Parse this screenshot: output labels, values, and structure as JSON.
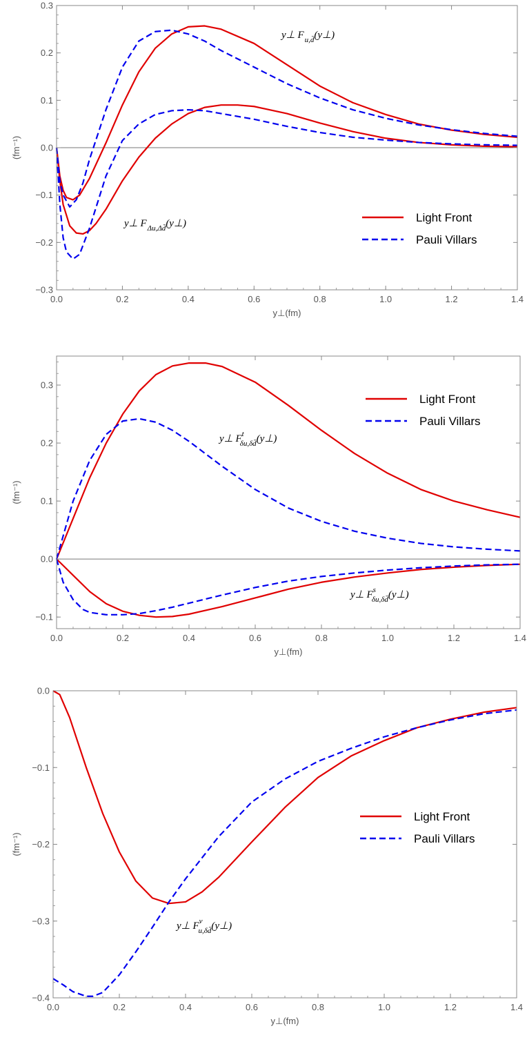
{
  "colors": {
    "light_front": "#e00000",
    "pauli_villars": "#0000ee",
    "frame": "#888888",
    "zero_line": "#777777"
  },
  "chart_data": [
    {
      "type": "line",
      "xlabel": "y⊥(fm)",
      "ylabel": "(fm⁻¹)",
      "xlim": [
        0,
        1.4
      ],
      "ylim": [
        -0.3,
        0.3
      ],
      "xticks": [
        "0.0",
        "0.2",
        "0.4",
        "0.6",
        "0.8",
        "1.0",
        "1.2",
        "1.4"
      ],
      "yticks": [
        "−0.3",
        "−0.2",
        "−0.1",
        "0.0",
        "0.1",
        "0.2",
        "0.3"
      ],
      "legend": {
        "position": "bottom-right",
        "entries": [
          "Light Front",
          "Pauli Villars"
        ]
      },
      "annotations": [
        {
          "text": "y⊥ F",
          "sub": "u,d̄",
          "tail": "(y⊥)"
        },
        {
          "text": "y⊥ F",
          "sub": "Δu,Δd̄",
          "tail": "(y⊥)"
        }
      ],
      "series": [
        {
          "name": "Light Front",
          "style": "solid",
          "x": [
            0,
            0.01,
            0.02,
            0.03,
            0.05,
            0.07,
            0.1,
            0.15,
            0.2,
            0.25,
            0.3,
            0.35,
            0.4,
            0.45,
            0.5,
            0.6,
            0.7,
            0.8,
            0.9,
            1.0,
            1.1,
            1.2,
            1.3,
            1.4
          ],
          "y": [
            0,
            -0.06,
            -0.09,
            -0.105,
            -0.11,
            -0.1,
            -0.065,
            0.01,
            0.09,
            0.16,
            0.21,
            0.24,
            0.255,
            0.257,
            0.25,
            0.22,
            0.175,
            0.13,
            0.095,
            0.07,
            0.05,
            0.037,
            0.028,
            0.022
          ]
        },
        {
          "name": "Light Front",
          "style": "solid",
          "x": [
            0,
            0.01,
            0.02,
            0.04,
            0.06,
            0.08,
            0.1,
            0.12,
            0.15,
            0.2,
            0.25,
            0.3,
            0.35,
            0.4,
            0.45,
            0.5,
            0.55,
            0.6,
            0.7,
            0.8,
            0.9,
            1.0,
            1.1,
            1.2,
            1.3,
            1.4
          ],
          "y": [
            0,
            -0.07,
            -0.12,
            -0.165,
            -0.18,
            -0.182,
            -0.175,
            -0.16,
            -0.13,
            -0.07,
            -0.02,
            0.02,
            0.05,
            0.072,
            0.085,
            0.09,
            0.09,
            0.087,
            0.072,
            0.052,
            0.034,
            0.02,
            0.011,
            0.006,
            0.003,
            0.002
          ]
        },
        {
          "name": "Pauli Villars",
          "style": "dashed",
          "x": [
            0,
            0.01,
            0.02,
            0.04,
            0.06,
            0.08,
            0.1,
            0.15,
            0.2,
            0.25,
            0.3,
            0.35,
            0.4,
            0.45,
            0.5,
            0.6,
            0.7,
            0.8,
            0.9,
            1.0,
            1.1,
            1.2,
            1.3,
            1.4
          ],
          "y": [
            0,
            -0.07,
            -0.1,
            -0.125,
            -0.11,
            -0.075,
            -0.025,
            0.08,
            0.17,
            0.225,
            0.245,
            0.248,
            0.24,
            0.225,
            0.205,
            0.17,
            0.135,
            0.105,
            0.08,
            0.062,
            0.048,
            0.038,
            0.03,
            0.024
          ]
        },
        {
          "name": "Pauli Villars",
          "style": "dashed",
          "x": [
            0,
            0.01,
            0.02,
            0.03,
            0.05,
            0.07,
            0.1,
            0.15,
            0.2,
            0.25,
            0.3,
            0.35,
            0.4,
            0.45,
            0.5,
            0.6,
            0.7,
            0.8,
            0.9,
            1.0,
            1.1,
            1.2,
            1.3,
            1.4
          ],
          "y": [
            0,
            -0.12,
            -0.19,
            -0.22,
            -0.235,
            -0.225,
            -0.17,
            -0.06,
            0.015,
            0.05,
            0.07,
            0.078,
            0.08,
            0.078,
            0.072,
            0.06,
            0.045,
            0.032,
            0.022,
            0.016,
            0.011,
            0.008,
            0.006,
            0.005
          ]
        }
      ]
    },
    {
      "type": "line",
      "xlabel": "y⊥(fm)",
      "ylabel": "(fm⁻¹)",
      "xlim": [
        0,
        1.4
      ],
      "ylim": [
        -0.12,
        0.35
      ],
      "xticks": [
        "0.0",
        "0.2",
        "0.4",
        "0.6",
        "0.8",
        "1.0",
        "1.2",
        "1.4"
      ],
      "yticks": [
        "−0.1",
        "0.0",
        "0.1",
        "0.2",
        "0.3"
      ],
      "legend": {
        "position": "top-right",
        "entries": [
          "Light Front",
          "Pauli Villars"
        ]
      },
      "annotations": [
        {
          "text": "y⊥ F",
          "sup": "t",
          "sub": "δu,δd̄",
          "tail": "(y⊥)"
        },
        {
          "text": "y⊥ F",
          "sup": "s",
          "sub": "δu,δd̄",
          "tail": "(y⊥)"
        }
      ],
      "series": [
        {
          "name": "Light Front",
          "style": "solid",
          "x": [
            0,
            0.05,
            0.1,
            0.15,
            0.2,
            0.25,
            0.3,
            0.35,
            0.4,
            0.45,
            0.5,
            0.6,
            0.7,
            0.8,
            0.9,
            1.0,
            1.1,
            1.2,
            1.3,
            1.4
          ],
          "y": [
            0,
            0.07,
            0.14,
            0.2,
            0.25,
            0.29,
            0.318,
            0.333,
            0.338,
            0.338,
            0.332,
            0.305,
            0.265,
            0.222,
            0.182,
            0.148,
            0.12,
            0.1,
            0.085,
            0.072
          ]
        },
        {
          "name": "Light Front",
          "style": "solid",
          "x": [
            0,
            0.05,
            0.1,
            0.15,
            0.2,
            0.25,
            0.3,
            0.35,
            0.4,
            0.5,
            0.6,
            0.7,
            0.8,
            0.9,
            1.0,
            1.1,
            1.2,
            1.3,
            1.4
          ],
          "y": [
            0,
            -0.028,
            -0.056,
            -0.077,
            -0.09,
            -0.097,
            -0.1,
            -0.099,
            -0.095,
            -0.082,
            -0.067,
            -0.052,
            -0.04,
            -0.031,
            -0.024,
            -0.018,
            -0.014,
            -0.011,
            -0.009
          ]
        },
        {
          "name": "Pauli Villars",
          "style": "dashed",
          "x": [
            0,
            0.05,
            0.1,
            0.15,
            0.2,
            0.25,
            0.3,
            0.35,
            0.4,
            0.5,
            0.6,
            0.7,
            0.8,
            0.9,
            1.0,
            1.1,
            1.2,
            1.3,
            1.4
          ],
          "y": [
            0,
            0.1,
            0.17,
            0.215,
            0.238,
            0.242,
            0.236,
            0.222,
            0.203,
            0.16,
            0.12,
            0.088,
            0.065,
            0.048,
            0.036,
            0.027,
            0.021,
            0.017,
            0.014
          ]
        },
        {
          "name": "Pauli Villars",
          "style": "dashed",
          "x": [
            0,
            0.02,
            0.05,
            0.08,
            0.1,
            0.15,
            0.2,
            0.25,
            0.3,
            0.35,
            0.4,
            0.5,
            0.6,
            0.7,
            0.8,
            0.9,
            1.0,
            1.1,
            1.2,
            1.3,
            1.4
          ],
          "y": [
            0,
            -0.04,
            -0.07,
            -0.087,
            -0.092,
            -0.096,
            -0.096,
            -0.094,
            -0.089,
            -0.083,
            -0.076,
            -0.062,
            -0.049,
            -0.038,
            -0.03,
            -0.024,
            -0.019,
            -0.015,
            -0.012,
            -0.01,
            -0.009
          ]
        }
      ]
    },
    {
      "type": "line",
      "xlabel": "y⊥(fm)",
      "ylabel": "(fm⁻¹)",
      "xlim": [
        0,
        1.4
      ],
      "ylim": [
        -0.4,
        0.0
      ],
      "xticks": [
        "0.0",
        "0.2",
        "0.4",
        "0.6",
        "0.8",
        "1.0",
        "1.2",
        "1.4"
      ],
      "yticks": [
        "−0.4",
        "−0.3",
        "−0.2",
        "−0.1",
        "0.0"
      ],
      "legend": {
        "position": "bottom-right",
        "entries": [
          "Light Front",
          "Pauli Villars"
        ]
      },
      "annotations": [
        {
          "text": "y⊥ F",
          "sup": "v",
          "sub": "u,δd̄",
          "tail": "(y⊥)"
        }
      ],
      "series": [
        {
          "name": "Light Front",
          "style": "solid",
          "x": [
            0,
            0.02,
            0.05,
            0.1,
            0.15,
            0.2,
            0.25,
            0.3,
            0.35,
            0.4,
            0.45,
            0.5,
            0.6,
            0.7,
            0.8,
            0.9,
            1.0,
            1.1,
            1.2,
            1.3,
            1.4
          ],
          "y": [
            0,
            -0.005,
            -0.035,
            -0.1,
            -0.16,
            -0.21,
            -0.248,
            -0.27,
            -0.277,
            -0.275,
            -0.262,
            -0.243,
            -0.197,
            -0.152,
            -0.113,
            -0.085,
            -0.065,
            -0.048,
            -0.037,
            -0.028,
            -0.022
          ]
        },
        {
          "name": "Pauli Villars",
          "style": "dashed",
          "x": [
            0,
            0.03,
            0.06,
            0.1,
            0.12,
            0.15,
            0.2,
            0.25,
            0.3,
            0.35,
            0.4,
            0.5,
            0.6,
            0.7,
            0.8,
            0.9,
            1.0,
            1.1,
            1.2,
            1.3,
            1.4
          ],
          "y": [
            -0.375,
            -0.383,
            -0.392,
            -0.398,
            -0.398,
            -0.393,
            -0.37,
            -0.34,
            -0.308,
            -0.275,
            -0.245,
            -0.19,
            -0.145,
            -0.115,
            -0.092,
            -0.075,
            -0.06,
            -0.048,
            -0.038,
            -0.03,
            -0.025
          ]
        }
      ]
    }
  ]
}
